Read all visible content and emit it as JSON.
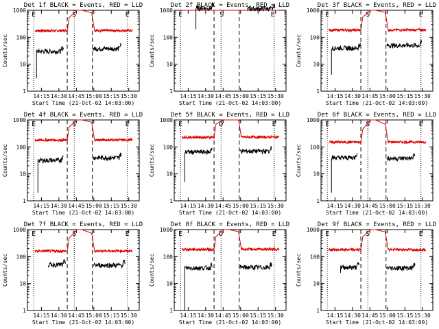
{
  "chart_data": [
    {
      "type": "line",
      "title": "Det 1f BLACK = Events, RED = LLD",
      "xlabel": "Start Time (21-Oct-02 14:03:00)",
      "ylabel": "Counts/sec",
      "markers": [
        "E",
        "S",
        "E"
      ],
      "marker_times": [
        14.14,
        14.72,
        15.48
      ],
      "red": {
        "base": 175,
        "seg1": [
          14.16,
          14.65
        ],
        "seg2": [
          14.97,
          15.55
        ],
        "drop": [
          14.76,
          14.83
        ]
      },
      "black": {
        "seg1": [
          14.18,
          14.57,
          30
        ],
        "seg2": [
          14.99,
          15.4,
          38
        ],
        "start_low": 3
      }
    },
    {
      "type": "line",
      "title": "Det 2f BLACK = Events, RED = LLD",
      "xlabel": "Start Time (21-Oct-02 14:03:00)",
      "ylabel": "Counts/sec",
      "markers": [
        "E",
        "S",
        "E"
      ],
      "marker_times": [
        14.14,
        14.73,
        15.46
      ],
      "red": {
        "base": 1250,
        "seg1": [
          14.16,
          14.66
        ],
        "seg2": [
          14.97,
          15.55
        ],
        "drop": [
          14.76,
          14.83
        ]
      },
      "black": {
        "seg1": [
          14.36,
          14.62,
          1200
        ],
        "seg2": [
          15.1,
          15.5,
          1150
        ],
        "start_low": 200
      }
    },
    {
      "type": "line",
      "title": "Det 3f BLACK = Events, RED = LLD",
      "xlabel": "Start Time (21-Oct-02 14:03:00)",
      "ylabel": "Counts/sec",
      "markers": [
        "E",
        "S",
        "E"
      ],
      "marker_times": [
        14.14,
        14.72,
        15.48
      ],
      "red": {
        "base": 185,
        "seg1": [
          14.16,
          14.65
        ],
        "seg2": [
          14.97,
          15.55
        ],
        "drop": [
          14.76,
          14.83
        ]
      },
      "black": {
        "seg1": [
          14.2,
          14.62,
          40
        ],
        "seg2": [
          14.99,
          15.5,
          50
        ],
        "start_low": 4
      }
    },
    {
      "type": "line",
      "title": "Det 4f BLACK = Events, RED = LLD",
      "xlabel": "Start Time (21-Oct-02 14:03:00)",
      "ylabel": "Counts/sec",
      "markers": [
        "E",
        "S",
        "E"
      ],
      "marker_times": [
        14.14,
        14.72,
        15.48
      ],
      "red": {
        "base": 180,
        "seg1": [
          14.16,
          14.65
        ],
        "seg2": [
          14.97,
          15.55
        ],
        "drop": [
          14.76,
          14.83
        ]
      },
      "black": {
        "seg1": [
          14.2,
          14.57,
          32
        ],
        "seg2": [
          14.99,
          15.4,
          40
        ],
        "start_low": 2
      }
    },
    {
      "type": "line",
      "title": "Det 5f BLACK = Events, RED = LLD",
      "xlabel": "Start Time (21-Oct-02 14:03:00)",
      "ylabel": "Counts/sec",
      "markers": [
        "E",
        "D",
        "E"
      ],
      "marker_times": [
        14.14,
        14.72,
        15.48
      ],
      "red": {
        "base": 230,
        "seg1": [
          14.16,
          14.65
        ],
        "seg2": [
          14.97,
          15.55
        ],
        "drop": [
          14.76,
          14.83
        ]
      },
      "black": {
        "seg1": [
          14.2,
          14.6,
          65
        ],
        "seg2": [
          14.99,
          15.45,
          70
        ],
        "start_low": 5
      }
    },
    {
      "type": "line",
      "title": "Det 6f BLACK = Events, RED = LLD",
      "xlabel": "Start Time (21-Oct-02 14:03:00)",
      "ylabel": "Counts/sec",
      "markers": [
        "E",
        "S",
        "E"
      ],
      "marker_times": [
        14.14,
        14.72,
        15.48
      ],
      "red": {
        "base": 150,
        "seg1": [
          14.16,
          14.65
        ],
        "seg2": [
          14.97,
          15.55
        ],
        "drop": [
          14.76,
          14.83
        ]
      },
      "black": {
        "seg1": [
          14.2,
          14.57,
          40
        ],
        "seg2": [
          14.99,
          15.4,
          38
        ],
        "start_low": 2
      }
    },
    {
      "type": "line",
      "title": "Det 7f BLACK = Events, RED = LLD",
      "xlabel": "Start Time (21-Oct-02 14:03:00)",
      "ylabel": "Counts/sec",
      "markers": [
        "E",
        "S",
        "E"
      ],
      "marker_times": [
        14.14,
        14.72,
        15.48
      ],
      "red": {
        "base": 160,
        "seg1": [
          14.16,
          14.65
        ],
        "seg2": [
          14.97,
          15.55
        ],
        "drop": [
          14.76,
          14.83
        ]
      },
      "black": {
        "seg1": [
          14.35,
          14.6,
          50
        ],
        "seg2": [
          14.99,
          15.45,
          48
        ],
        "start_low": 40
      }
    },
    {
      "type": "line",
      "title": "Det 8f BLACK = Events, RED = LLD",
      "xlabel": "Start Time (21-Oct-02 14:03:00)",
      "ylabel": "Counts/sec",
      "markers": [
        "E",
        "D",
        "E"
      ],
      "marker_times": [
        14.14,
        14.72,
        15.48
      ],
      "red": {
        "base": 185,
        "seg1": [
          14.16,
          14.65
        ],
        "seg2": [
          14.97,
          15.55
        ],
        "drop": [
          14.76,
          14.83
        ]
      },
      "black": {
        "seg1": [
          14.2,
          14.6,
          38
        ],
        "seg2": [
          14.99,
          15.45,
          40
        ],
        "start_low": 1
      }
    },
    {
      "type": "line",
      "title": "Det 9f BLACK = Events, RED = LLD",
      "xlabel": "Start Time (21-Oct-02 14:03:00)",
      "ylabel": "Counts/sec",
      "markers": [
        "E",
        "S",
        "E"
      ],
      "marker_times": [
        14.14,
        14.72,
        15.48
      ],
      "red": {
        "base": 180,
        "seg1": [
          14.16,
          14.65
        ],
        "seg2": [
          14.97,
          15.55
        ],
        "drop": [
          14.76,
          14.83
        ]
      },
      "black": {
        "seg1": [
          14.33,
          14.6,
          40
        ],
        "seg2": [
          14.99,
          15.4,
          38
        ],
        "start_low": 25
      }
    }
  ],
  "axes": {
    "y_scale": "log",
    "ylim": [
      1,
      1000
    ],
    "yticks": [
      "1",
      "10",
      "100",
      "1000"
    ],
    "xlim": [
      14.05,
      15.65
    ],
    "xticks": [
      {
        "t": 14.25,
        "label": "14:15"
      },
      {
        "t": 14.5,
        "label": "14:30"
      },
      {
        "t": 14.75,
        "label": "14:45"
      },
      {
        "t": 15.0,
        "label": "15:00"
      },
      {
        "t": 15.25,
        "label": "15:15"
      },
      {
        "t": 15.5,
        "label": "15:30"
      }
    ],
    "dotted_lines": [
      14.14,
      14.72,
      15.48
    ],
    "dashed_lines": [
      14.62,
      14.98
    ]
  },
  "colors": {
    "red": "#dd0000",
    "black": "#000000",
    "frame": "#000000"
  }
}
